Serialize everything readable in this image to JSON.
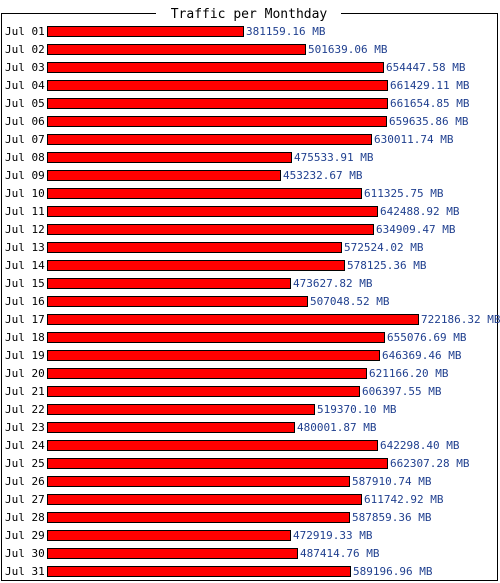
{
  "chart_data": {
    "type": "bar",
    "orientation": "horizontal",
    "title": "Traffic per Monthday",
    "unit": "MB",
    "categories": [
      "Jul 01",
      "Jul 02",
      "Jul 03",
      "Jul 04",
      "Jul 05",
      "Jul 06",
      "Jul 07",
      "Jul 08",
      "Jul 09",
      "Jul 10",
      "Jul 11",
      "Jul 12",
      "Jul 13",
      "Jul 14",
      "Jul 15",
      "Jul 16",
      "Jul 17",
      "Jul 18",
      "Jul 19",
      "Jul 20",
      "Jul 21",
      "Jul 22",
      "Jul 23",
      "Jul 24",
      "Jul 25",
      "Jul 26",
      "Jul 27",
      "Jul 28",
      "Jul 29",
      "Jul 30",
      "Jul 31"
    ],
    "values": [
      381159.16,
      501639.06,
      654447.58,
      661429.11,
      661654.85,
      659635.86,
      630011.74,
      475533.91,
      453232.67,
      611325.75,
      642488.92,
      634909.47,
      572524.02,
      578125.36,
      473627.82,
      507048.52,
      722186.32,
      655076.69,
      646369.46,
      621166.2,
      606397.55,
      519370.1,
      480001.87,
      642298.4,
      662307.28,
      587910.74,
      611742.92,
      587859.36,
      472919.33,
      487414.76,
      589196.96
    ],
    "value_labels": [
      "381159.16 MB",
      "501639.06 MB",
      "654447.58 MB",
      "661429.11 MB",
      "661654.85 MB",
      "659635.86 MB",
      "630011.74 MB",
      "475533.91 MB",
      "453232.67 MB",
      "611325.75 MB",
      "642488.92 MB",
      "634909.47 MB",
      "572524.02 MB",
      "578125.36 MB",
      "473627.82 MB",
      "507048.52 MB",
      "722186.32 MB",
      "655076.69 MB",
      "646369.46 MB",
      "621166.20 MB",
      "606397.55 MB",
      "519370.10 MB",
      "480001.87 MB",
      "642298.40 MB",
      "662307.28 MB",
      "587910.74 MB",
      "611742.92 MB",
      "587859.36 MB",
      "472919.33 MB",
      "487414.76 MB",
      "589196.96 MB"
    ],
    "xlim": [
      0,
      722186.32
    ],
    "grid": false,
    "legend": "none",
    "colors": {
      "bar": "#ff0000",
      "bar_outline": "#000000",
      "value_label": "#1f3f8f",
      "category_label": "#000000",
      "frame": "#000000"
    }
  }
}
